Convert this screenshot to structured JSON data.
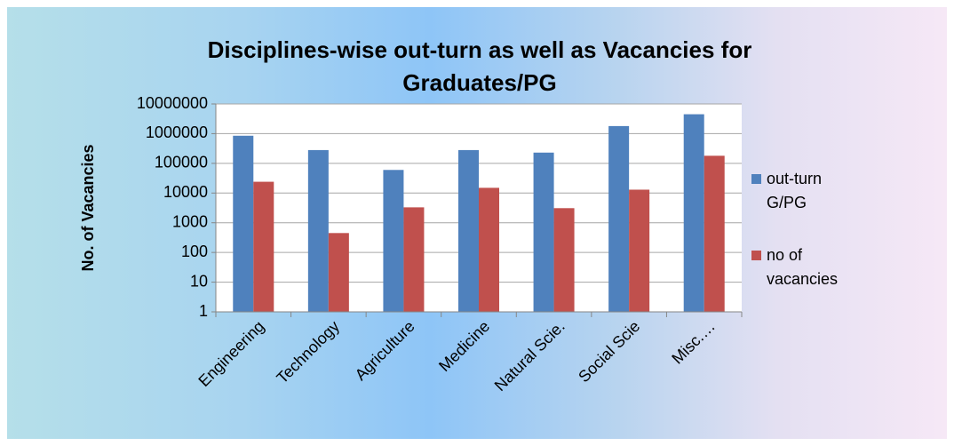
{
  "chart_data": {
    "type": "bar",
    "title": "Disciplines-wise out-turn as well as  Vacancies for Graduates/PG",
    "y_label": "No. of Vacancies",
    "categories": [
      "Engineering",
      "Technology",
      "Agriculture",
      "Medicine",
      "Natural Scie.",
      "Social Scie",
      "Misc.…"
    ],
    "series": [
      {
        "name": "out-turn G/PG",
        "color": "#4f81bd",
        "values": [
          850000,
          280000,
          60000,
          280000,
          230000,
          1800000,
          4500000
        ]
      },
      {
        "name": "no of vacancies",
        "color": "#c0504d",
        "values": [
          24000,
          450,
          3300,
          15000,
          3100,
          13000,
          180000
        ]
      }
    ],
    "log_scale": true,
    "ylim": [
      1,
      10000000
    ],
    "yticks": [
      1,
      10,
      100,
      1000,
      10000,
      100000,
      1000000,
      10000000
    ],
    "grid": true,
    "legend": "right"
  }
}
